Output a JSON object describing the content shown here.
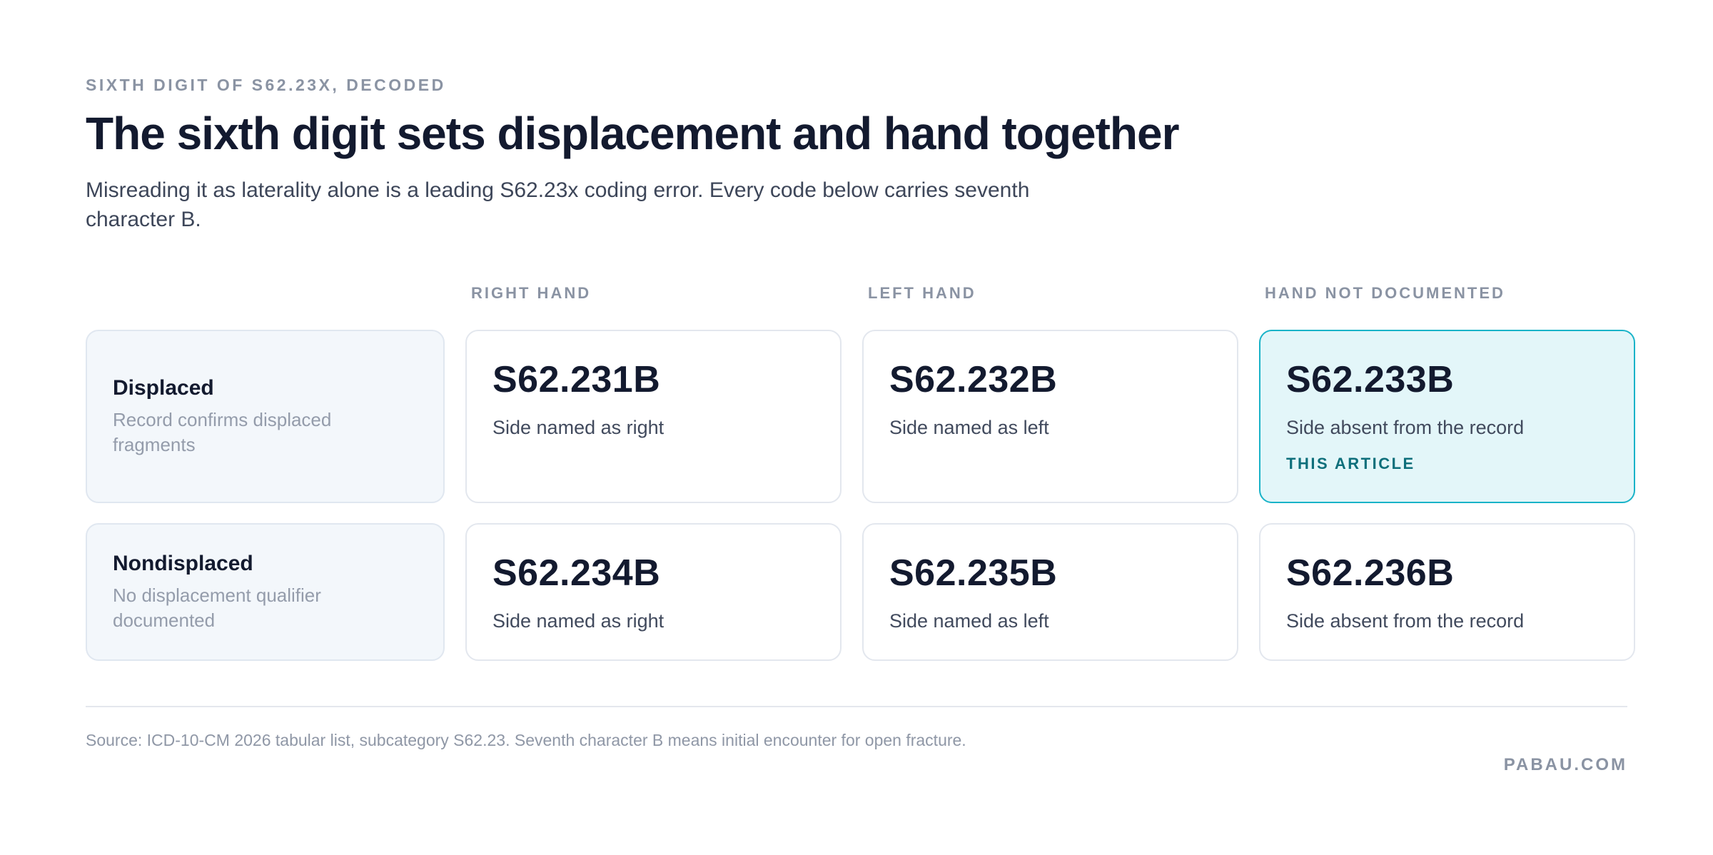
{
  "header": {
    "eyebrow": "SIXTH DIGIT OF S62.23X, DECODED",
    "title": "The sixth digit sets displacement and hand together",
    "subtitle": "Misreading it as laterality alone is a leading S62.23x coding error. Every code below carries seventh character B."
  },
  "columns": [
    "RIGHT HAND",
    "LEFT HAND",
    "HAND NOT DOCUMENTED"
  ],
  "rows": [
    {
      "label": "Displaced",
      "description": "Record confirms displaced fragments",
      "cells": [
        {
          "code": "S62.231B",
          "description": "Side named as right"
        },
        {
          "code": "S62.232B",
          "description": "Side named as left"
        },
        {
          "code": "S62.233B",
          "description": "Side absent from the record",
          "badge": "THIS ARTICLE"
        }
      ]
    },
    {
      "label": "Nondisplaced",
      "description": "No displacement qualifier documented",
      "cells": [
        {
          "code": "S62.234B",
          "description": "Side named as right"
        },
        {
          "code": "S62.235B",
          "description": "Side named as left"
        },
        {
          "code": "S62.236B",
          "description": "Side absent from the record"
        }
      ]
    }
  ],
  "footer": {
    "source": "Source: ICD-10-CM 2026 tabular list, subcategory S62.23. Seventh character B means initial encounter for open fracture.",
    "brand": "PABAU.COM"
  },
  "colors": {
    "highlight_border": "#19b3c8",
    "highlight_fill": "#e3f6f9",
    "badge": "#0e6f7b",
    "title": "#131a2f"
  }
}
